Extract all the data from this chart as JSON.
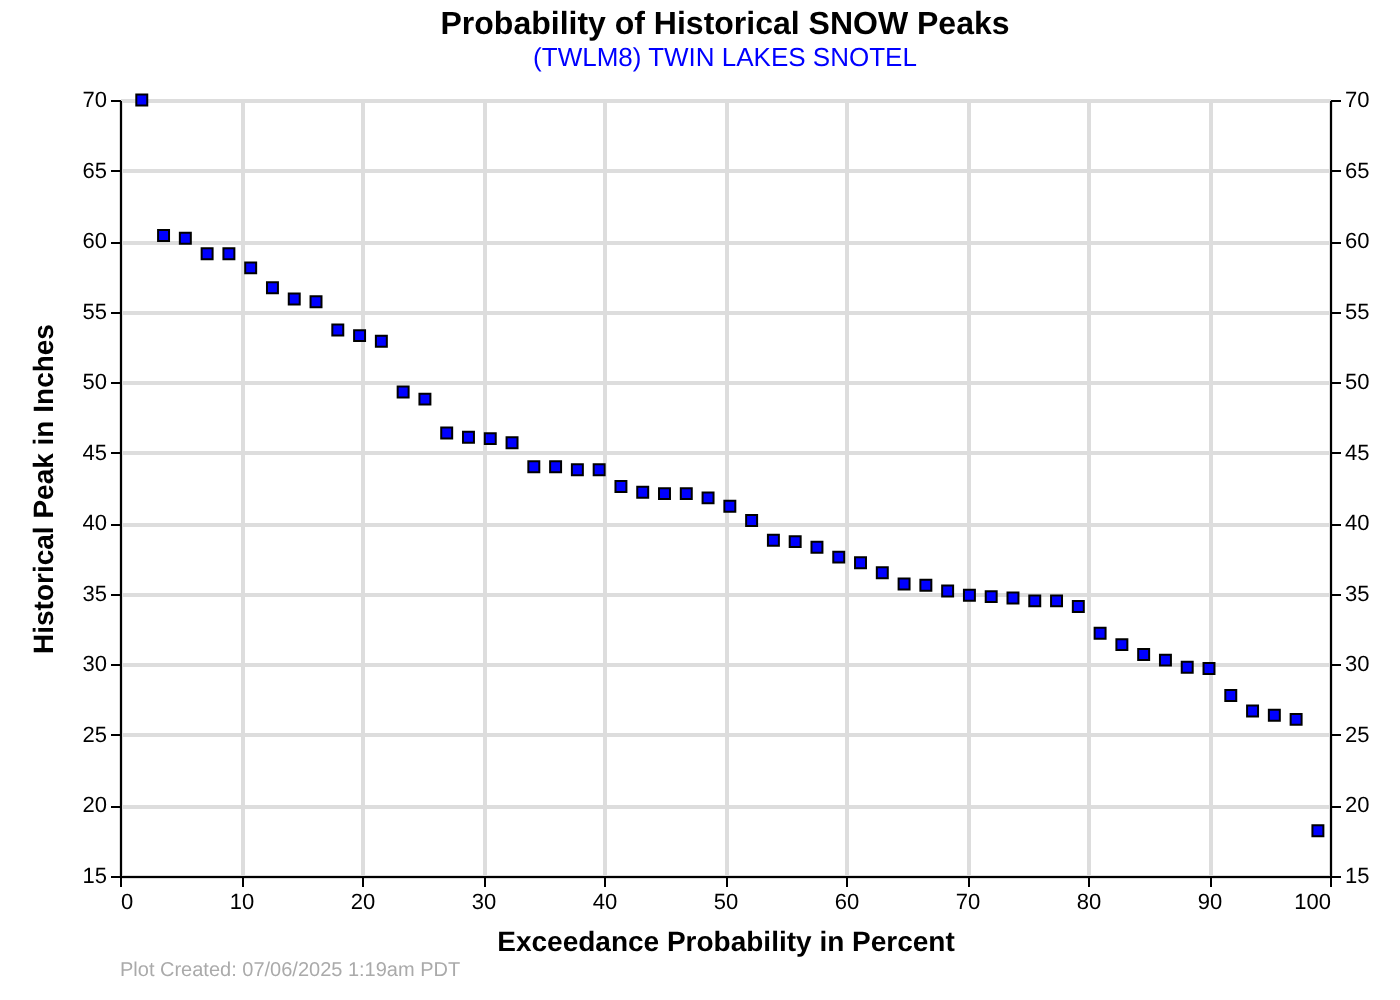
{
  "chart_data": {
    "type": "scatter",
    "title": "Probability of Historical SNOW Peaks",
    "subtitle": "(TWLM8) TWIN LAKES SNOTEL",
    "xlabel": "Exceedance Probability in Percent",
    "ylabel": "Historical Peak in Inches",
    "x": [
      1.8,
      3.6,
      5.4,
      7.2,
      9.0,
      10.8,
      12.6,
      14.4,
      16.2,
      18.0,
      19.8,
      21.6,
      23.4,
      25.2,
      27.0,
      28.8,
      30.6,
      32.4,
      34.2,
      36.0,
      37.8,
      39.6,
      41.4,
      43.2,
      45.0,
      46.8,
      48.6,
      50.4,
      52.2,
      54.0,
      55.8,
      57.6,
      59.4,
      61.2,
      63.0,
      64.8,
      66.6,
      68.4,
      70.2,
      72.0,
      73.8,
      75.6,
      77.4,
      79.2,
      81.0,
      82.8,
      84.6,
      86.4,
      88.2,
      90.0,
      91.8,
      93.6,
      95.4,
      97.2,
      99.0
    ],
    "series": [
      {
        "color": "#0000ff",
        "values": [
          70,
          60.4,
          60.2,
          59.1,
          59.1,
          58.1,
          56.7,
          55.9,
          55.7,
          53.7,
          53.3,
          52.9,
          49.3,
          48.8,
          46.4,
          46.1,
          46.0,
          45.7,
          44.0,
          44.0,
          43.8,
          43.8,
          42.6,
          42.2,
          42.1,
          42.1,
          41.8,
          41.2,
          40.2,
          38.8,
          38.7,
          38.3,
          37.6,
          37.2,
          36.5,
          35.7,
          35.6,
          35.2,
          34.9,
          34.8,
          34.7,
          34.5,
          34.5,
          34.1,
          32.2,
          31.4,
          30.7,
          30.3,
          29.8,
          29.7,
          27.8,
          26.7,
          26.4,
          26.1,
          18.2
        ]
      }
    ],
    "xlim": [
      0,
      100
    ],
    "xticks": [
      0,
      10,
      20,
      30,
      40,
      50,
      60,
      70,
      80,
      90,
      100
    ],
    "ylim": [
      15,
      70
    ],
    "yticks": [
      15,
      20,
      25,
      30,
      35,
      40,
      45,
      50,
      55,
      60,
      65,
      70
    ],
    "y2lim": [
      15,
      70
    ],
    "y2ticks": [
      15,
      20,
      25,
      30,
      35,
      40,
      45,
      50,
      55,
      60,
      65,
      70
    ],
    "grid": true,
    "marker": "square",
    "annotations": [
      "Plot Created: 07/06/2025 1:19am PDT"
    ]
  }
}
